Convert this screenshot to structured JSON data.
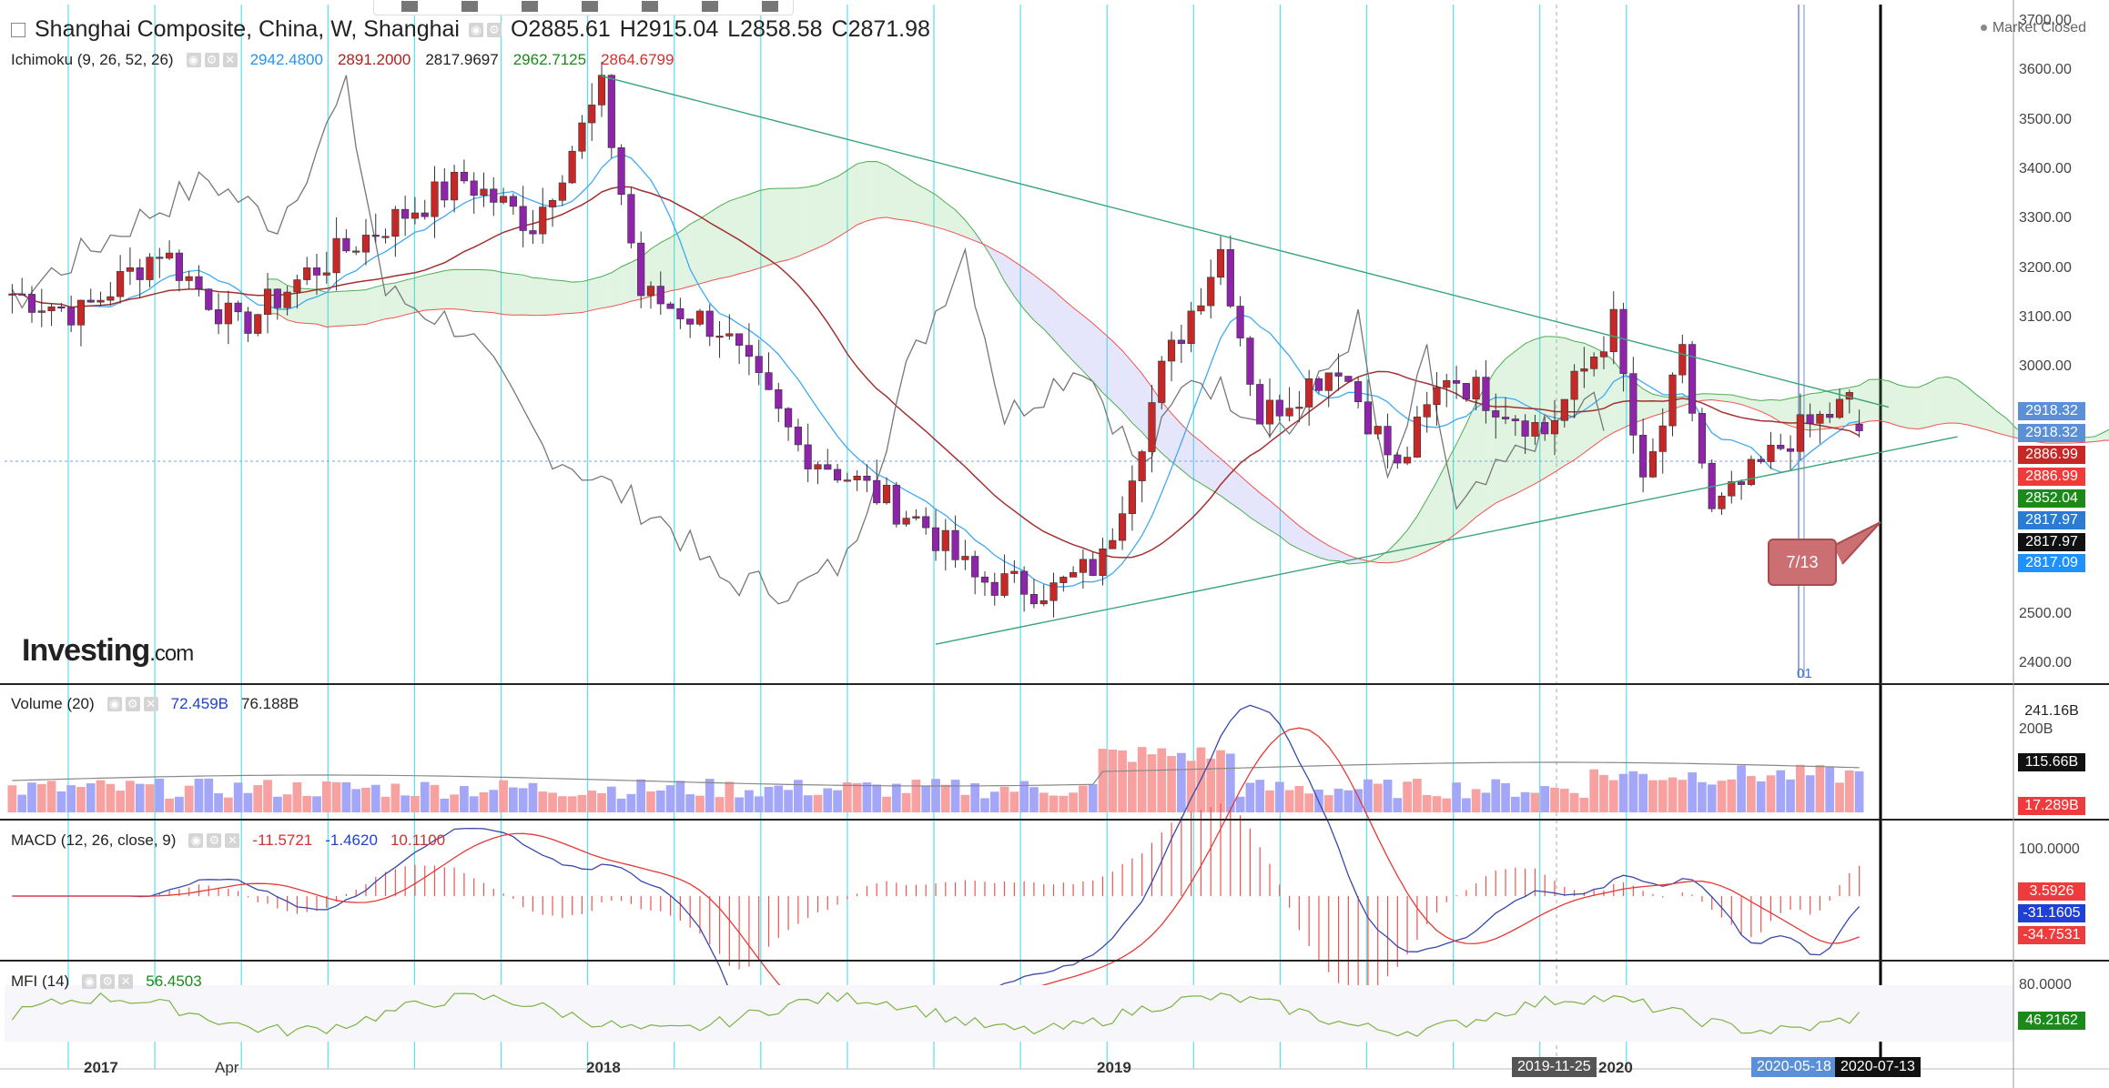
{
  "toolbar": {
    "icons": [
      "brush-icon",
      "gear-icon",
      "copy-icon",
      "doc-icon",
      "upload-icon",
      "clock-icon",
      "trash-icon"
    ]
  },
  "main": {
    "title": "Shanghai Composite, China, W, Shanghai",
    "ohlc": {
      "o": "O2885.61",
      "h": "H2915.04",
      "l": "L2858.58",
      "c": "C2871.98"
    },
    "status": "Market Closed",
    "logo_main": "Investing",
    "logo_suffix": ".com",
    "ichimoku": {
      "label": "Ichimoku (9, 26, 52, 26)",
      "values": [
        {
          "text": "2942.4800",
          "color": "#2196f3"
        },
        {
          "text": "2891.2000",
          "color": "#b71c1c"
        },
        {
          "text": "2817.9697",
          "color": "#222222"
        },
        {
          "text": "2962.7125",
          "color": "#1b8a1b"
        },
        {
          "text": "2864.6799",
          "color": "#d32f2f"
        }
      ]
    },
    "callout": "7/13",
    "marker_label": "01",
    "y_ticks": [
      "3700.00",
      "3600.00",
      "3500.00",
      "3400.00",
      "3300.00",
      "3200.00",
      "3100.00",
      "3000.00",
      "2500.00",
      "2400.00"
    ],
    "price_tags": [
      {
        "text": "2918.32",
        "bg": "#5b8fd6"
      },
      {
        "text": "2918.32",
        "bg": "#5b8fd6"
      },
      {
        "text": "2886.99",
        "bg": "#c62828"
      },
      {
        "text": "2886.99",
        "bg": "#ef3b3b"
      },
      {
        "text": "2852.04",
        "bg": "#1b8a1b"
      },
      {
        "text": "2817.97",
        "bg": "#2a7bd4"
      },
      {
        "text": "2817.97",
        "bg": "#111111"
      },
      {
        "text": "2817.09",
        "bg": "#1e90ff"
      }
    ]
  },
  "volume": {
    "label": "Volume (20)",
    "values": [
      {
        "text": "72.459B",
        "color": "#1e40d6"
      },
      {
        "text": "76.188B",
        "color": "#222222"
      }
    ],
    "y_ticks": [
      "200B"
    ],
    "tags": [
      {
        "text": "241.16B",
        "bg": "#ffffff",
        "fg": "#222222"
      },
      {
        "text": "115.66B",
        "bg": "#111111",
        "fg": "#ffffff"
      },
      {
        "text": "17.289B",
        "bg": "#ef3b3b",
        "fg": "#ffffff"
      }
    ]
  },
  "macd": {
    "label": "MACD (12, 26, close, 9)",
    "values": [
      {
        "text": "-11.5721",
        "color": "#d32f2f"
      },
      {
        "text": "-1.4620",
        "color": "#1e40d6"
      },
      {
        "text": "10.1100",
        "color": "#d32f2f"
      }
    ],
    "y_ticks": [
      "100.0000"
    ],
    "tags": [
      {
        "text": "3.5926",
        "bg": "#ef3b3b"
      },
      {
        "text": "-31.1605",
        "bg": "#1e40d6"
      },
      {
        "text": "-34.7531",
        "bg": "#ef3b3b"
      }
    ]
  },
  "mfi": {
    "label": "MFI (14)",
    "values": [
      {
        "text": "56.4503",
        "color": "#1b8a1b"
      }
    ],
    "y_ticks": [
      "80.0000"
    ],
    "tags": [
      {
        "text": "46.2162",
        "bg": "#1b8a1b"
      }
    ]
  },
  "x_axis": {
    "labels": [
      "2017",
      "Apr",
      "2018",
      "2019",
      "2020"
    ],
    "tags": [
      {
        "text": "2019-11-25",
        "bg": "#555555"
      },
      {
        "text": "2020-05-18",
        "bg": "#5b8fd6"
      },
      {
        "text": "2020-07-13",
        "bg": "#111111"
      }
    ]
  },
  "chart_data": [
    {
      "type": "candlestick",
      "title": "Shanghai Composite, China, W, Shanghai",
      "ylim": [
        2400,
        3700
      ],
      "weeks_start": "2016-11-28",
      "weeks_end": "2020-07-06",
      "approx_close_path": [
        {
          "x": "2016-11-28",
          "y": 3150
        },
        {
          "x": "2017-01-16",
          "y": 3110
        },
        {
          "x": "2017-03-13",
          "y": 3240
        },
        {
          "x": "2017-05-08",
          "y": 3080
        },
        {
          "x": "2017-06-26",
          "y": 3190
        },
        {
          "x": "2017-08-21",
          "y": 3290
        },
        {
          "x": "2017-10-16",
          "y": 3380
        },
        {
          "x": "2017-12-04",
          "y": 3290
        },
        {
          "x": "2018-01-22",
          "y": 3560
        },
        {
          "x": "2018-02-19",
          "y": 3150
        },
        {
          "x": "2018-04-16",
          "y": 3080
        },
        {
          "x": "2018-06-11",
          "y": 2840
        },
        {
          "x": "2018-07-16",
          "y": 2780
        },
        {
          "x": "2018-09-10",
          "y": 2680
        },
        {
          "x": "2018-10-15",
          "y": 2570
        },
        {
          "x": "2018-12-10",
          "y": 2550
        },
        {
          "x": "2019-01-14",
          "y": 2610
        },
        {
          "x": "2019-02-25",
          "y": 2990
        },
        {
          "x": "2019-04-08",
          "y": 3240
        },
        {
          "x": "2019-05-06",
          "y": 2900
        },
        {
          "x": "2019-07-01",
          "y": 3010
        },
        {
          "x": "2019-08-12",
          "y": 2790
        },
        {
          "x": "2019-09-16",
          "y": 2990
        },
        {
          "x": "2019-11-25",
          "y": 2870
        },
        {
          "x": "2020-01-13",
          "y": 3090
        },
        {
          "x": "2020-02-03",
          "y": 2750
        },
        {
          "x": "2020-03-02",
          "y": 3020
        },
        {
          "x": "2020-03-23",
          "y": 2700
        },
        {
          "x": "2020-05-18",
          "y": 2860
        },
        {
          "x": "2020-06-29",
          "y": 2930
        },
        {
          "x": "2020-07-06",
          "y": 2872
        }
      ],
      "last_bar": {
        "open": 2885.61,
        "high": 2915.04,
        "low": 2858.58,
        "close": 2871.98
      }
    },
    {
      "type": "bar",
      "title": "Volume (20)",
      "last": [
        72.459,
        76.188
      ],
      "unit": "B"
    },
    {
      "type": "line",
      "title": "MACD (12, 26, close, 9)",
      "last": [
        -11.5721,
        -1.462,
        10.11
      ]
    },
    {
      "type": "line",
      "title": "MFI (14)",
      "last": [
        56.4503
      ]
    }
  ]
}
